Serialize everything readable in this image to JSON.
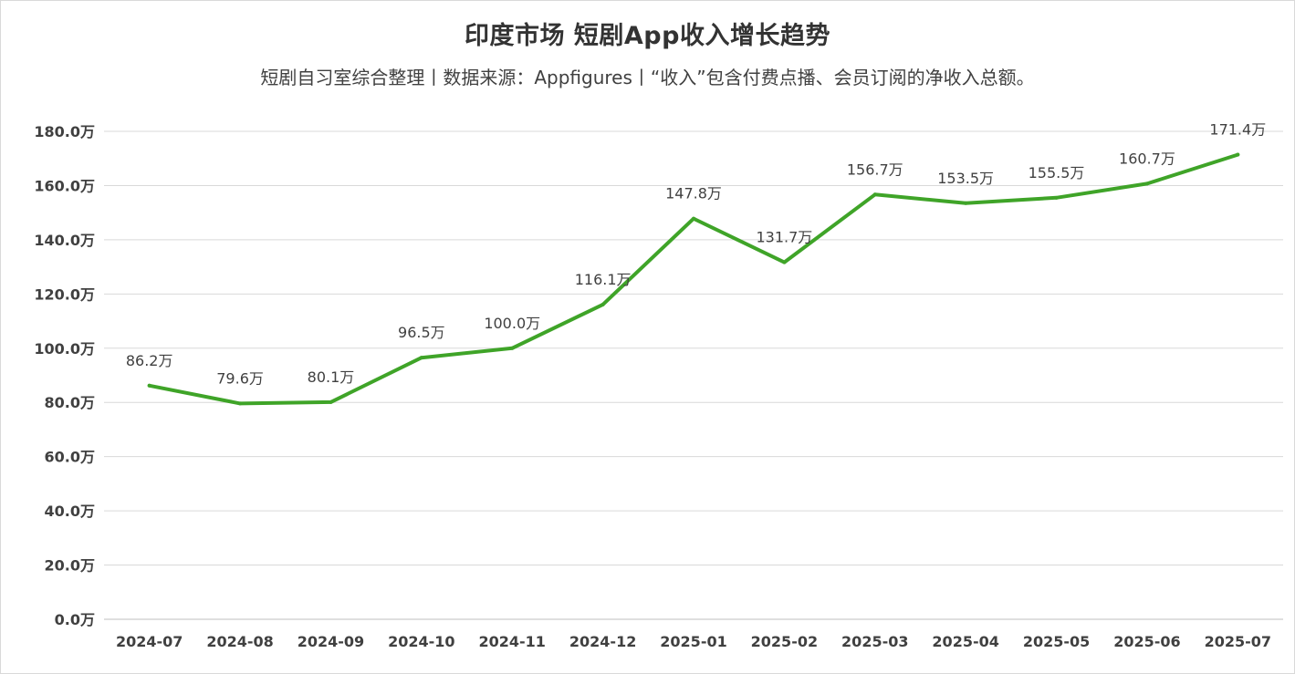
{
  "chart_data": {
    "type": "line",
    "title": "印度市场 短剧App收入增长趋势",
    "subtitle": "短剧自习室综合整理丨数据来源：Appfigures丨“收入”包含付费点播、会员订阅的净收入总额。",
    "categories": [
      "2024-07",
      "2024-08",
      "2024-09",
      "2024-10",
      "2024-11",
      "2024-12",
      "2025-01",
      "2025-02",
      "2025-03",
      "2025-04",
      "2025-05",
      "2025-06",
      "2025-07"
    ],
    "series": [
      {
        "values": [
          86.2,
          79.6,
          80.1,
          96.5,
          100.0,
          116.1,
          147.8,
          131.7,
          156.7,
          153.5,
          155.5,
          160.7,
          171.4
        ],
        "data_labels": [
          "86.2万",
          "79.6万",
          "80.1万",
          "96.5万",
          "100.0万",
          "116.1万",
          "147.8万",
          "131.7万",
          "156.7万",
          "153.5万",
          "155.5万",
          "160.7万",
          "171.4万"
        ],
        "color": "#3fa428"
      }
    ],
    "ylim": [
      0,
      180
    ],
    "y_ticks": [
      0,
      20,
      40,
      60,
      80,
      100,
      120,
      140,
      160,
      180
    ],
    "y_tick_labels": [
      "0.0万",
      "20.0万",
      "40.0万",
      "60.0万",
      "80.0万",
      "100.0万",
      "120.0万",
      "140.0万",
      "160.0万",
      "180.0万"
    ],
    "xlabel": "",
    "ylabel": "",
    "grid": true,
    "legend": "none",
    "colors": {
      "line": "#3fa428",
      "grid": "#d9d9d9",
      "axis_text": "#404040",
      "label_text": "#404040"
    }
  }
}
